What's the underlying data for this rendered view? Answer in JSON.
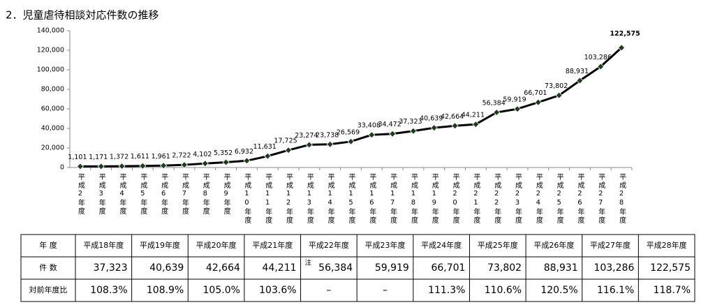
{
  "chart_data": {
    "type": "line",
    "title": "2．児童虐待相談対応件数の推移",
    "categories": [
      "平成2年度",
      "平成3年度",
      "平成4年度",
      "平成5年度",
      "平成6年度",
      "平成7年度",
      "平成8年度",
      "平成9年度",
      "平成10年度",
      "平成11年度",
      "平成12年度",
      "平成13年度",
      "平成14年度",
      "平成15年度",
      "平成16年度",
      "平成17年度",
      "平成18年度",
      "平成19年度",
      "平成20年度",
      "平成21年度",
      "平成22年度",
      "平成23年度",
      "平成24年度",
      "平成25年度",
      "平成26年度",
      "平成27年度",
      "平成28年度"
    ],
    "values": [
      1101,
      1171,
      1372,
      1611,
      1961,
      2722,
      4102,
      5352,
      6932,
      11631,
      17725,
      23274,
      23738,
      26569,
      33408,
      34472,
      37323,
      40639,
      42664,
      44211,
      56384,
      59919,
      66701,
      73802,
      88931,
      103286,
      122575
    ],
    "value_labels": [
      "1,101",
      "1,171",
      "1,372",
      "1,611",
      "1,961",
      "2,722",
      "4,102",
      "5,352",
      "6,932",
      "11,631",
      "17,725",
      "23,274",
      "23,738",
      "26,569",
      "33,408",
      "34,472",
      "37,323",
      "40,639",
      "42,664",
      "44,211",
      "56,384",
      "59,919",
      "66,701",
      "73,802",
      "88,931",
      "103,286",
      "122,575"
    ],
    "color": "#000000",
    "marker_color": "#1e3d1e",
    "ylim": [
      0,
      140000
    ],
    "yticks": [
      0,
      {
        "value": 20000,
        "label": "20,000"
      },
      {
        "value": 40000,
        "label": "40,000"
      },
      {
        "value": 60000,
        "label": "60,000"
      },
      {
        "value": 80000,
        "label": "80,000"
      },
      {
        "value": 100000,
        "label": "100,000"
      },
      {
        "value": 120000,
        "label": "120,000"
      },
      {
        "value": 140000,
        "label": "140,000"
      }
    ]
  },
  "table": {
    "header": [
      "年 度",
      "平成18年度",
      "平成19年度",
      "平成20年度",
      "平成21年度",
      "平成22年度",
      "平成23年度",
      "平成24年度",
      "平成25年度",
      "平成26年度",
      "平成27年度",
      "平成28年度"
    ],
    "rows": [
      [
        "件 数",
        "37,323",
        "40,639",
        "42,664",
        "44,211",
        "56,384",
        "59,919",
        "66,701",
        "73,802",
        "88,931",
        "103,286",
        "122,575"
      ],
      [
        "対前年度比",
        "108.3%",
        "108.9%",
        "105.0%",
        "103.6%",
        "–",
        "–",
        "111.3%",
        "110.6%",
        "120.5%",
        "116.1%",
        "118.7%"
      ]
    ],
    "note": "注"
  }
}
